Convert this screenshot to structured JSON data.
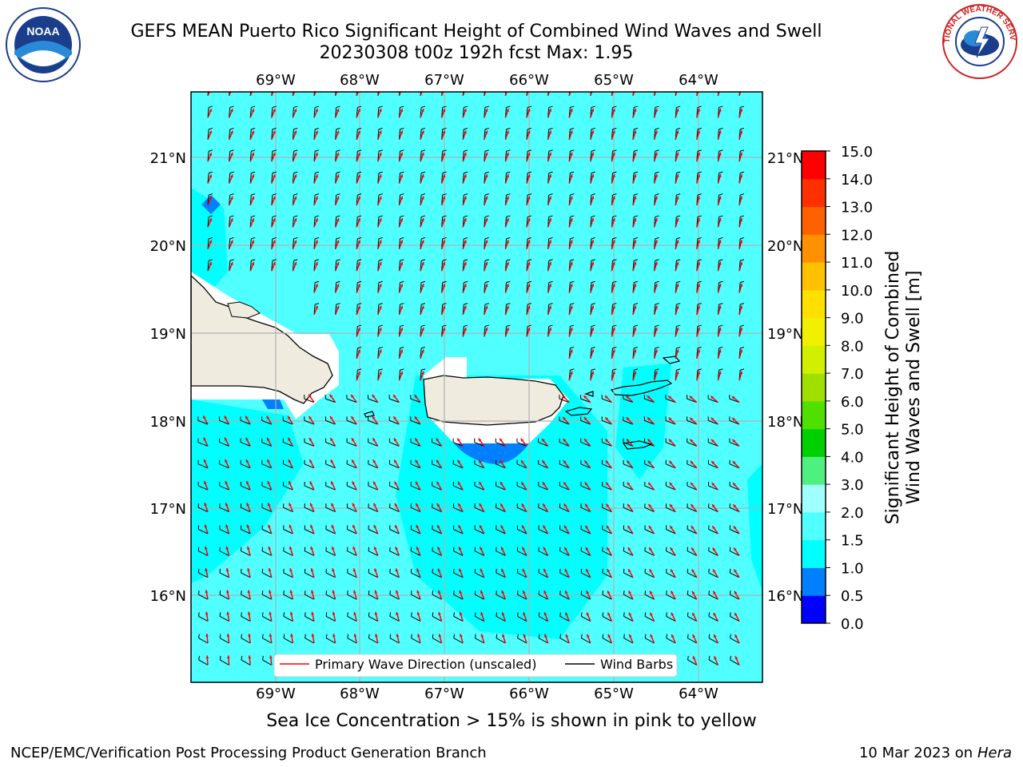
{
  "header": {
    "title_line1": "GEFS MEAN Puerto Rico Significant Height of Combined Wind Waves and Swell",
    "title_line2": "20230308 t00z 192h fcst   Max: 1.95"
  },
  "logos": {
    "left": {
      "icon": "noaa-logo",
      "text": "NOAA"
    },
    "right": {
      "icon": "nws-logo",
      "text": "NATIONAL WEATHER SERVICE"
    }
  },
  "map": {
    "lon_labels": [
      "69°W",
      "68°W",
      "67°W",
      "66°W",
      "65°W",
      "64°W"
    ],
    "lat_labels": [
      "21°N",
      "20°N",
      "19°N",
      "18°N",
      "17°N",
      "16°N"
    ],
    "legend": {
      "wave_label": "Primary Wave Direction (unscaled)",
      "barb_label": "Wind Barbs"
    },
    "colors": {
      "ocean": "#50ffff",
      "ocean_low": "#00ffff",
      "land": "#efecdf",
      "coast": "#000000",
      "grid": "#b0b0b0",
      "wave_arrow": "#ff0000",
      "barb": "#000000"
    }
  },
  "colorbar": {
    "label_line1": "Significant Height of Combined",
    "label_line2": "Wind Waves and Swell [m]",
    "ticks": [
      "0.0",
      "0.5",
      "1.0",
      "1.5",
      "2.0",
      "3.0",
      "4.0",
      "5.0",
      "6.0",
      "7.0",
      "8.0",
      "9.0",
      "10.0",
      "11.0",
      "12.0",
      "13.0",
      "14.0",
      "15.0"
    ],
    "colors": [
      "#0000ff",
      "#0080ff",
      "#00ffff",
      "#50ffff",
      "#a0ffff",
      "#50f080",
      "#00d000",
      "#50e000",
      "#a0e000",
      "#d0f000",
      "#f0f000",
      "#ffe000",
      "#ffc000",
      "#ff9000",
      "#ff6000",
      "#ff3000",
      "#ff0000"
    ]
  },
  "note": "Sea Ice Concentration > 15% is shown in pink to yellow",
  "footer": {
    "left": "NCEP/EMC/Verification Post Processing Product Generation Branch",
    "right_date": "10 Mar 2023 on",
    "right_host": "Hera"
  }
}
